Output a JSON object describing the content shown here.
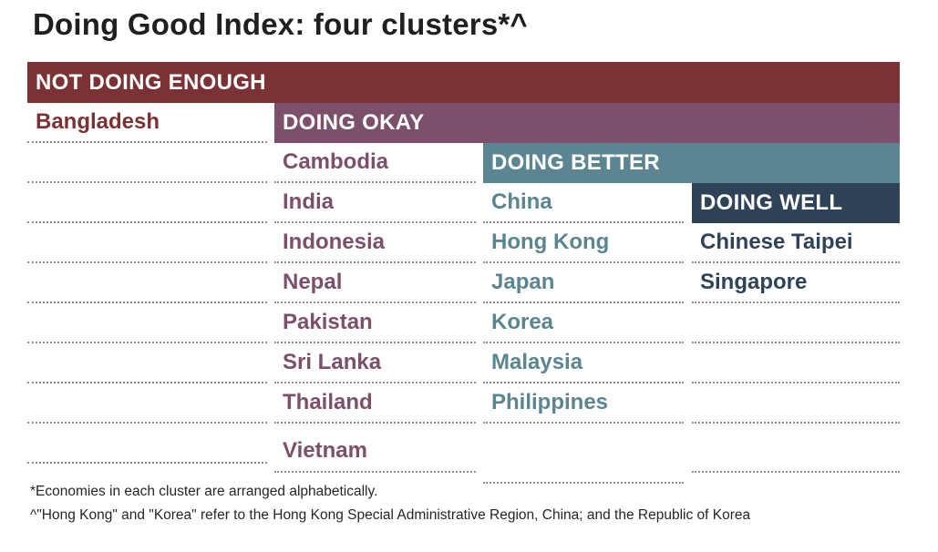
{
  "title": "Doing Good Index: four clusters*^",
  "colors": {
    "not_doing_enough": "#7a3235",
    "doing_okay": "#7c4f6a",
    "doing_better": "#5a8591",
    "doing_well": "#2f4358",
    "divider": "#8f8f8f"
  },
  "clusters": [
    {
      "label": "NOT DOING ENOUGH",
      "color": "#7a3235",
      "text_color": "#7a3235",
      "rows": [
        "Bangladesh",
        "",
        "",
        "",
        "",
        "",
        "",
        "",
        ""
      ]
    },
    {
      "label": "DOING OKAY",
      "color": "#7c4f6a",
      "text_color": "#7c4f6a",
      "rows": [
        "Cambodia",
        "India",
        "Indonesia",
        "Nepal",
        "Pakistan",
        "Sri Lanka",
        "Thailand",
        "Vietnam"
      ]
    },
    {
      "label": "DOING BETTER",
      "color": "#5a8591",
      "text_color": "#5a8591",
      "rows": [
        "China",
        "Hong Kong",
        "Japan",
        "Korea",
        "Malaysia",
        "Philippines",
        ""
      ]
    },
    {
      "label": "DOING WELL",
      "color": "#2f4358",
      "text_color": "#2f4358",
      "rows": [
        "Chinese Taipei",
        "Singapore",
        "",
        "",
        "",
        ""
      ]
    }
  ],
  "footnotes": [
    "*Economies in each cluster are arranged alphabetically.",
    "^\"Hong Kong\" and \"Korea\" refer to the Hong Kong Special Administrative Region, China; and the Republic of Korea"
  ]
}
